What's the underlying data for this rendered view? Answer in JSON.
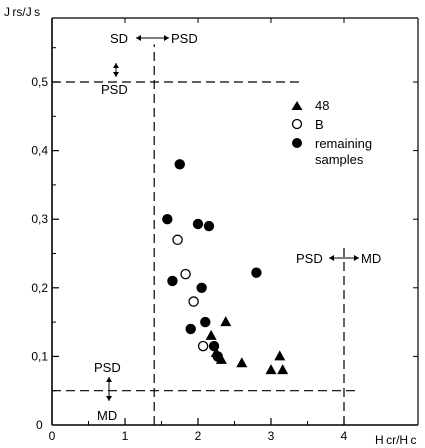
{
  "chart_data": {
    "type": "scatter",
    "ylabel": "J rs/J s",
    "xlabel": "H cr/H c",
    "xlim": [
      0,
      4.25
    ],
    "ylim": [
      0,
      0.56
    ],
    "x_ticks": [
      {
        "value": 0,
        "label": "0"
      },
      {
        "value": 1,
        "label": "1"
      },
      {
        "value": 2,
        "label": "2"
      },
      {
        "value": 3,
        "label": "3"
      },
      {
        "value": 4,
        "label": "4"
      }
    ],
    "y_ticks": [
      {
        "value": 0.1,
        "label": "0,1"
      },
      {
        "value": 0.2,
        "label": "0,2"
      },
      {
        "value": 0.3,
        "label": "0,3"
      },
      {
        "value": 0.4,
        "label": "0,4"
      },
      {
        "value": 0.5,
        "label": "0,5"
      }
    ],
    "y_origin_label": "0",
    "boundaries": {
      "vertical": [
        {
          "x": 1.4,
          "y_from": 0,
          "y_to": 0.555
        },
        {
          "x": 4.0,
          "y_from": 0,
          "y_to": 0.265
        }
      ],
      "horizontal": [
        {
          "y": 0.5,
          "x_from": 0,
          "x_to": 3.45
        },
        {
          "y": 0.05,
          "x_from": 0,
          "x_to": 4.2
        }
      ]
    },
    "zone_labels": {
      "top_left": "SD",
      "top_right": "PSD",
      "top_below": "PSD",
      "right_left": "PSD",
      "right_right": "MD",
      "bottom_above": "PSD",
      "bottom_below": "MD"
    },
    "legend": {
      "placement": "top-right",
      "entries": [
        {
          "marker": "filled-triangle",
          "label": "48"
        },
        {
          "marker": "open-circle",
          "label": "B"
        },
        {
          "marker": "filled-circle",
          "label": "remaining",
          "label_line2": "samples"
        }
      ]
    },
    "series": [
      {
        "name": "48",
        "marker": "filled-triangle",
        "x": [
          2.38,
          2.18,
          2.25,
          2.32,
          2.6,
          3.12,
          3.0,
          3.16
        ],
        "y": [
          0.15,
          0.13,
          0.105,
          0.095,
          0.09,
          0.1,
          0.08,
          0.08
        ]
      },
      {
        "name": "B",
        "marker": "open-circle",
        "x": [
          1.72,
          1.83,
          1.94,
          2.07
        ],
        "y": [
          0.27,
          0.22,
          0.18,
          0.115
        ]
      },
      {
        "name": "remaining samples",
        "marker": "filled-circle",
        "x": [
          1.75,
          1.58,
          2.0,
          2.15,
          1.65,
          2.05,
          2.8,
          2.1,
          1.9,
          2.22,
          2.27
        ],
        "y": [
          0.38,
          0.3,
          0.293,
          0.29,
          0.21,
          0.2,
          0.222,
          0.15,
          0.14,
          0.115,
          0.1
        ]
      }
    ]
  }
}
